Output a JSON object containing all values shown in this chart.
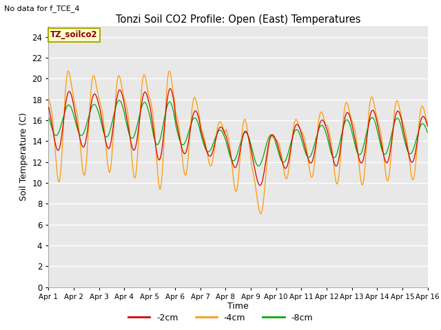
{
  "title": "Tonzi Soil CO2 Profile: Open (East) Temperatures",
  "subtitle": "No data for f_TCE_4",
  "ylabel": "Soil Temperature (C)",
  "xlabel": "Time",
  "legend_label": "TZ_soilco2",
  "series_labels": [
    "-2cm",
    "-4cm",
    "-8cm"
  ],
  "series_colors": [
    "#cc0000",
    "#ff9900",
    "#00aa00"
  ],
  "ylim": [
    0,
    25
  ],
  "yticks": [
    0,
    2,
    4,
    6,
    8,
    10,
    12,
    14,
    16,
    18,
    20,
    22,
    24
  ],
  "bg_color": "#e8e8e8",
  "fig_bg_color": "#ffffff",
  "n_days": 15,
  "points_per_day": 96,
  "base_temps": [
    16.0,
    16.0,
    16.2,
    16.0,
    15.8,
    15.0,
    14.0,
    13.5,
    13.0,
    13.5,
    14.0,
    14.2,
    14.5,
    14.5,
    14.2
  ],
  "amp_4cm": [
    4.8,
    4.3,
    4.2,
    4.5,
    5.2,
    3.5,
    2.0,
    3.5,
    2.2,
    2.5,
    2.8,
    3.5,
    3.8,
    3.5,
    3.2
  ],
  "amp_2cm": [
    2.8,
    2.5,
    2.8,
    2.8,
    3.5,
    2.2,
    1.5,
    2.0,
    1.8,
    2.0,
    2.0,
    2.5,
    2.5,
    2.5,
    2.2
  ],
  "amp_8cm": [
    1.5,
    1.5,
    1.8,
    1.8,
    2.2,
    1.5,
    1.2,
    1.5,
    1.5,
    1.5,
    1.5,
    1.8,
    1.8,
    1.8,
    1.5
  ],
  "phase_4cm": 0.62,
  "phase_2cm": 0.6,
  "phase_8cm": 0.55,
  "extra_dip_day": 8.3,
  "extra_dip_4cm": -3.5,
  "extra_dip_2cm": -1.5,
  "extra_dip_8cm": 0.0
}
